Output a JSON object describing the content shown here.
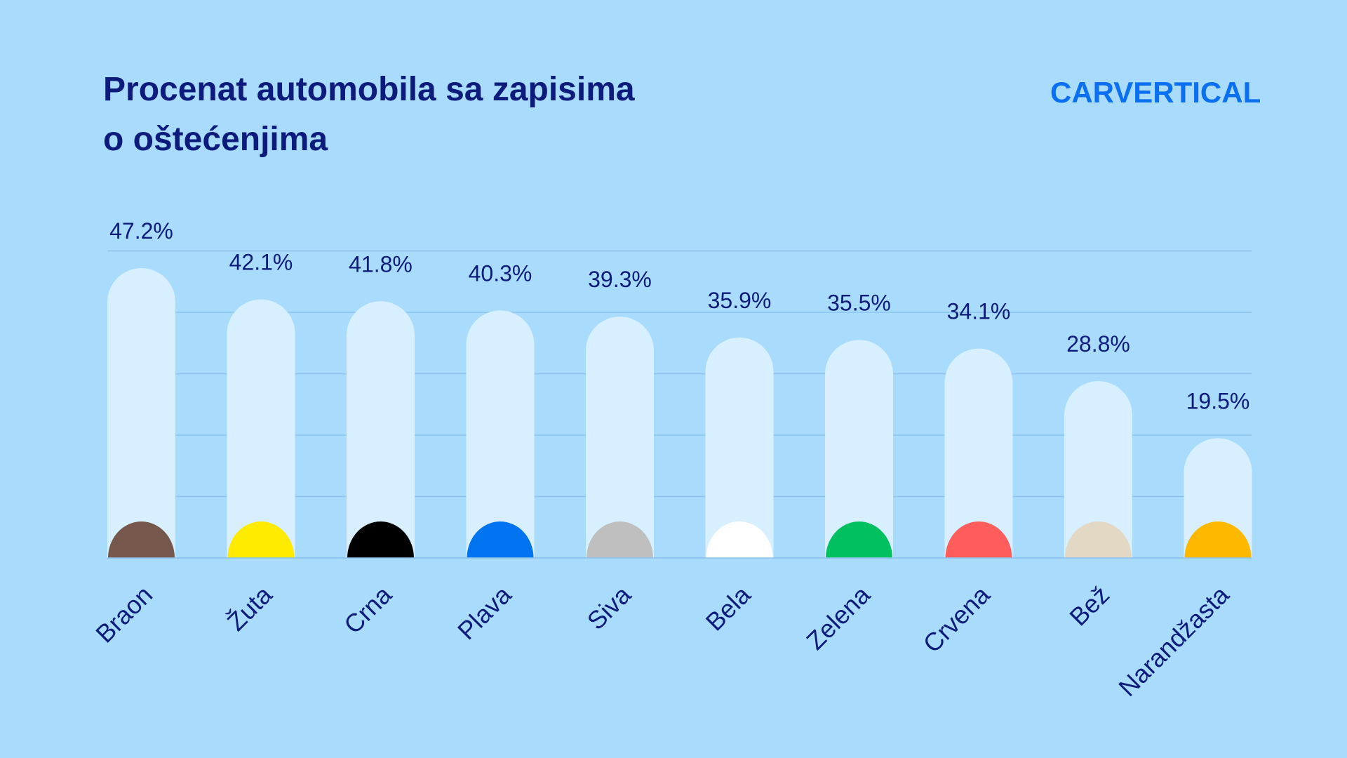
{
  "title_lines": [
    "Procenat automobila sa zapisima",
    "o oštećenjima"
  ],
  "logo": "CARVERTICAL",
  "colors": {
    "background": "#a9dbfd",
    "track": "#d7efff",
    "text": "#0d1b7c",
    "grid": "#8cc4ee",
    "logo": "#0b6ff2"
  },
  "chart_data": {
    "type": "bar",
    "title": "Procenat automobila sa zapisima o oštećenjima",
    "categories": [
      "Braon",
      "Žuta",
      "Crna",
      "Plava",
      "Siva",
      "Bela",
      "Zelena",
      "Crvena",
      "Bež",
      "Narandžasta"
    ],
    "values": [
      47.2,
      42.1,
      41.8,
      40.3,
      39.3,
      35.9,
      35.5,
      34.1,
      28.8,
      19.5
    ],
    "value_labels": [
      "47.2%",
      "42.1%",
      "41.8%",
      "40.3%",
      "39.3%",
      "35.9%",
      "35.5%",
      "34.1%",
      "28.8%",
      "19.5%"
    ],
    "swatch_colors": [
      "#75574b",
      "#ffeb00",
      "#000000",
      "#0073f0",
      "#bfbfbf",
      "#ffffff",
      "#00c060",
      "#ff5c5c",
      "#e3d8c4",
      "#ffb800"
    ],
    "ylim": [
      0,
      50
    ],
    "grid": true,
    "xlabel": "",
    "ylabel": ""
  }
}
